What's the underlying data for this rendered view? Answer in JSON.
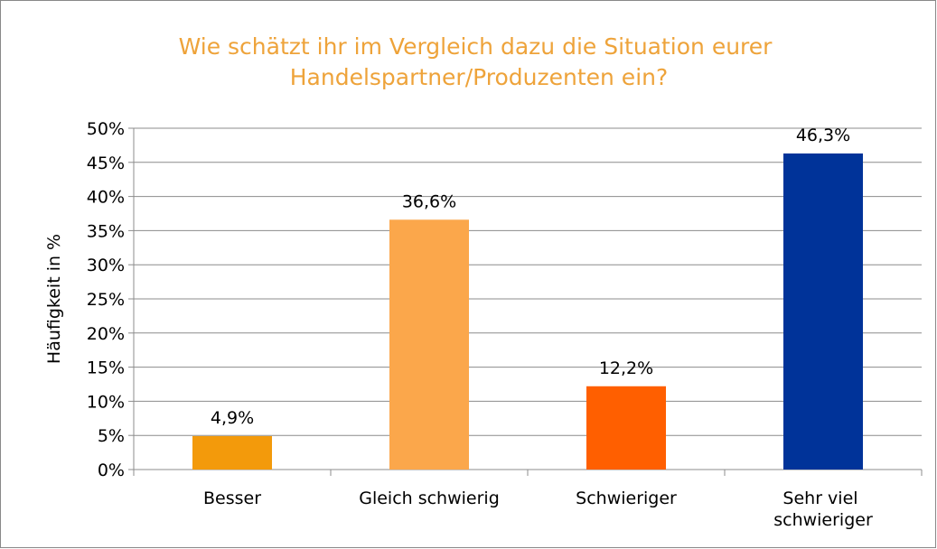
{
  "chart_data": {
    "type": "bar",
    "title": "Wie schätzt ihr im Vergleich dazu die Situation eurer Handelspartner/Produzenten ein?",
    "y_label": "Häufigkeit in %",
    "categories": [
      "Besser",
      "Gleich schwierig",
      "Schwieriger",
      "Sehr viel schwieriger"
    ],
    "values": [
      4.9,
      36.6,
      12.2,
      46.3
    ],
    "value_labels": [
      "4,9%",
      "36,6%",
      "12,2%",
      "46,3%"
    ],
    "colors": [
      "#f39a0b",
      "#fba74b",
      "#ff5f00",
      "#003399"
    ],
    "ylim": [
      0,
      50
    ],
    "yticks": [
      {
        "value": 0,
        "label": "0%"
      },
      {
        "value": 5,
        "label": "5%"
      },
      {
        "value": 10,
        "label": "10%"
      },
      {
        "value": 15,
        "label": "15%"
      },
      {
        "value": 20,
        "label": "20%"
      },
      {
        "value": 25,
        "label": "25%"
      },
      {
        "value": 30,
        "label": "30%"
      },
      {
        "value": 35,
        "label": "35%"
      },
      {
        "value": 40,
        "label": "40%"
      },
      {
        "value": 45,
        "label": "45%"
      },
      {
        "value": 50,
        "label": "50%"
      }
    ],
    "grid": true
  }
}
